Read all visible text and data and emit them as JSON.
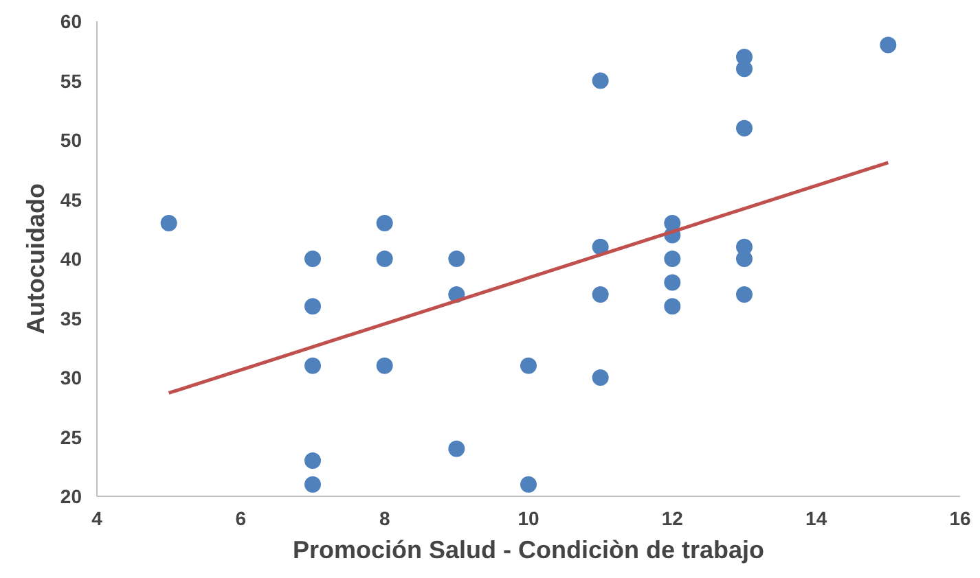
{
  "chart_data": {
    "type": "scatter",
    "xlabel": "Promoción Salud - Condiciòn de trabajo",
    "ylabel": "Autocuidado",
    "xlim": [
      4,
      16
    ],
    "xticks": [
      4,
      6,
      8,
      10,
      12,
      14,
      16
    ],
    "ylim": [
      20,
      60
    ],
    "yticks": [
      20,
      25,
      30,
      35,
      40,
      45,
      50,
      55,
      60
    ],
    "grid": false,
    "marker": "circle",
    "series": [
      {
        "color": "#4f81bd",
        "x": [
          5,
          7,
          7,
          7,
          7,
          7,
          8,
          8,
          8,
          9,
          9,
          9,
          10,
          10,
          11,
          11,
          11,
          11,
          12,
          12,
          12,
          12,
          12,
          13,
          13,
          13,
          13,
          13,
          13,
          15
        ],
        "values": [
          43,
          40,
          36,
          31,
          23,
          21,
          43,
          40,
          31,
          40,
          37,
          24,
          31,
          21,
          55,
          41,
          37,
          30,
          43,
          42,
          40,
          38,
          36,
          57,
          56,
          51,
          41,
          40,
          37,
          58
        ]
      },
      {
        "type": "line",
        "color": "#c0504d",
        "x": [
          5,
          15
        ],
        "values": [
          28.7,
          48.1
        ],
        "marker": "none"
      }
    ]
  }
}
